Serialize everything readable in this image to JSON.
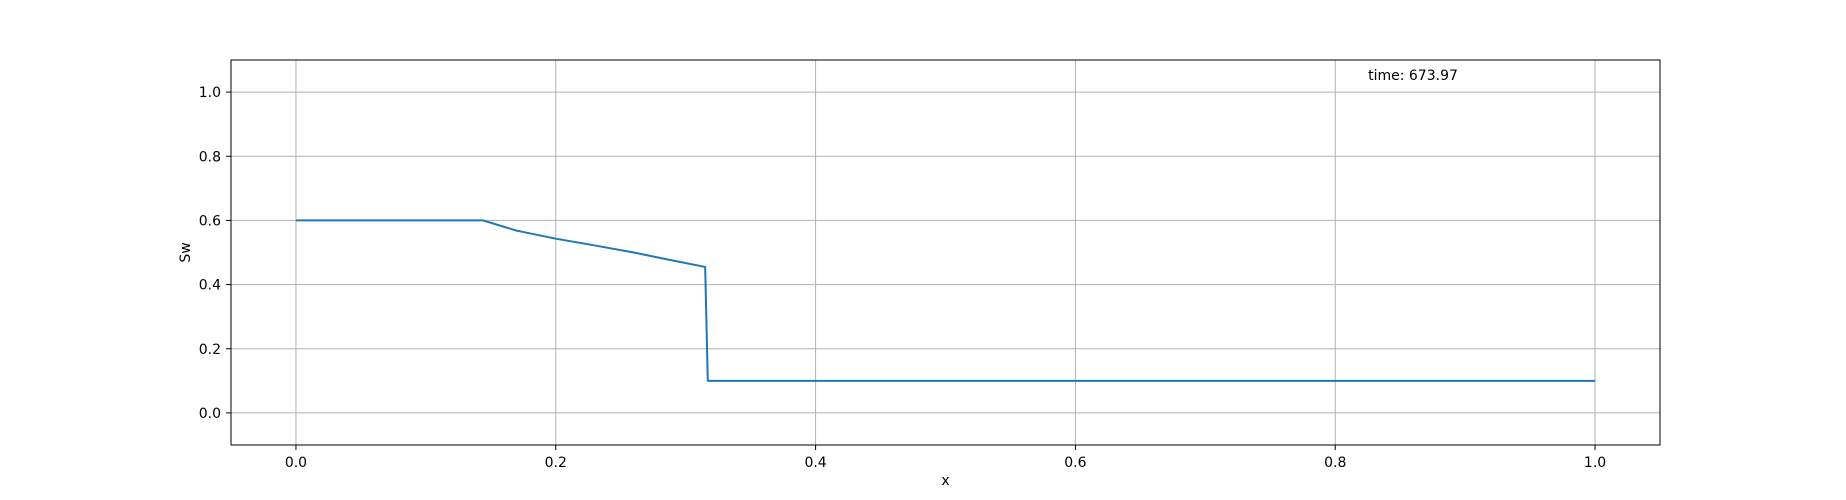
{
  "chart_data": {
    "type": "line",
    "title": "",
    "xlabel": "x",
    "ylabel": "Sw",
    "xlim": [
      -0.05,
      1.05
    ],
    "ylim": [
      -0.1,
      1.1
    ],
    "x_ticks": [
      0.0,
      0.2,
      0.4,
      0.6,
      0.8,
      1.0
    ],
    "x_tick_labels": [
      "0.0",
      "0.2",
      "0.4",
      "0.6",
      "0.8",
      "1.0"
    ],
    "y_ticks": [
      0.0,
      0.2,
      0.4,
      0.6,
      0.8,
      1.0
    ],
    "y_tick_labels": [
      "0.0",
      "0.2",
      "0.4",
      "0.6",
      "0.8",
      "1.0"
    ],
    "grid": true,
    "annotation": "time: 673.97",
    "series": [
      {
        "color": "#1f77b4",
        "x": [
          0.0,
          0.144,
          0.17,
          0.2,
          0.23,
          0.26,
          0.29,
          0.315,
          0.317,
          1.0
        ],
        "y": [
          0.6,
          0.6,
          0.568,
          0.543,
          0.522,
          0.5,
          0.475,
          0.455,
          0.1,
          0.1
        ]
      }
    ]
  }
}
